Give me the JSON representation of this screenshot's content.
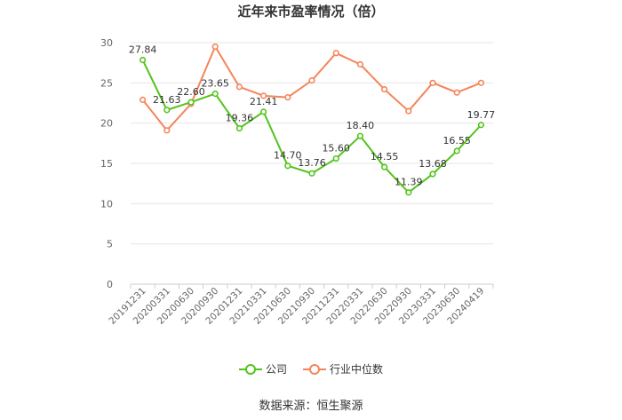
{
  "title": "近年来市盈率情况（倍）",
  "source": "数据来源：恒生聚源",
  "chart_data": {
    "type": "line",
    "categories": [
      "20191231",
      "20200331",
      "20200630",
      "20200930",
      "20201231",
      "20210331",
      "20210630",
      "20210930",
      "20211231",
      "20220331",
      "20220630",
      "20220930",
      "20230331",
      "20230630",
      "20240419"
    ],
    "ylim": [
      0,
      30
    ],
    "yticks": [
      0,
      5,
      10,
      15,
      20,
      25,
      30
    ],
    "grid": true,
    "legend_position": "bottom",
    "series": [
      {
        "name": "公司",
        "color": "#52c41a",
        "show_labels": true,
        "values": [
          27.84,
          21.63,
          22.6,
          23.65,
          19.36,
          21.41,
          14.7,
          13.76,
          15.6,
          18.4,
          14.55,
          11.39,
          13.68,
          16.55,
          19.77
        ]
      },
      {
        "name": "行业中位数",
        "color": "#f5845a",
        "show_labels": false,
        "values": [
          22.9,
          19.1,
          22.4,
          29.5,
          24.5,
          23.4,
          23.2,
          25.3,
          28.7,
          27.3,
          24.2,
          21.5,
          25.0,
          23.8,
          25.0
        ]
      }
    ]
  }
}
